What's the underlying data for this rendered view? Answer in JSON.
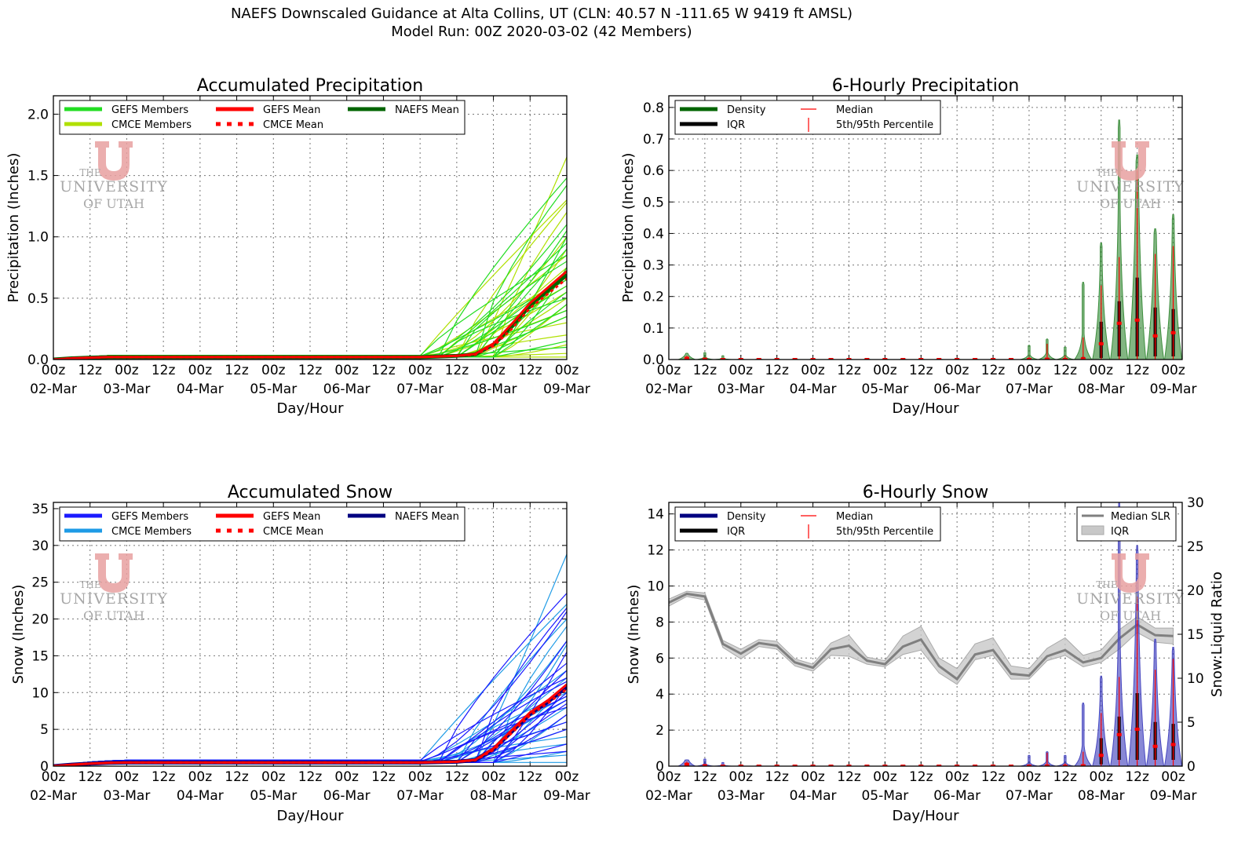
{
  "suptitle": {
    "line1": "NAEFS Downscaled Guidance at Alta Collins, UT (CLN: 40.57 N -111.65 W 9419 ft AMSL)",
    "line2": "Model Run: 00Z 2020-03-02 (42 Members)"
  },
  "watermark": {
    "line1": "THE",
    "line2": "UNIVERSITY",
    "line3": "OF UTAH",
    "logo_color": "#e8a0a0"
  },
  "x_axis": {
    "label": "Day/Hour",
    "hour_labels": [
      "00z",
      "12z",
      "00z",
      "12z",
      "00z",
      "12z",
      "00z",
      "12z",
      "00z",
      "12z",
      "00z",
      "12z",
      "00z",
      "12z",
      "00z"
    ],
    "date_labels": [
      "02-Mar",
      "03-Mar",
      "04-Mar",
      "05-Mar",
      "06-Mar",
      "07-Mar",
      "08-Mar",
      "09-Mar"
    ]
  },
  "chart_data": [
    {
      "id": "acc_precip",
      "type": "line",
      "title": "Accumulated Precipitation",
      "ylabel": "Precipitation (Inches)",
      "xlim_hours": [
        0,
        168
      ],
      "ylim": [
        0,
        2.15
      ],
      "yticks": [
        "0.0",
        "0.5",
        "1.0",
        "1.5",
        "2.0"
      ],
      "ytick_values": [
        0,
        0.5,
        1.0,
        1.5,
        2.0
      ],
      "grid": true,
      "legend": {
        "placement": "top-left",
        "items": [
          {
            "label": "GEFS Members",
            "color": "#22dd22",
            "style": "solid"
          },
          {
            "label": "CMCE Members",
            "color": "#b0e000",
            "style": "solid"
          },
          {
            "label": "GEFS Mean",
            "color": "#ff0000",
            "style": "solid"
          },
          {
            "label": "CMCE Mean",
            "color": "#ff0000",
            "style": "dotted"
          },
          {
            "label": "NAEFS Mean",
            "color": "#006400",
            "style": "solid"
          }
        ]
      },
      "x_hours": [
        0,
        6,
        12,
        18,
        24,
        30,
        36,
        42,
        48,
        54,
        60,
        66,
        72,
        78,
        84,
        90,
        96,
        102,
        108,
        114,
        120,
        126,
        132,
        138,
        144,
        150,
        156,
        162,
        168
      ],
      "plateau": 0.02,
      "gefs_mean": [
        0,
        0.01,
        0.015,
        0.02,
        0.02,
        0.02,
        0.02,
        0.02,
        0.02,
        0.02,
        0.02,
        0.02,
        0.02,
        0.02,
        0.02,
        0.02,
        0.02,
        0.02,
        0.02,
        0.02,
        0.02,
        0.025,
        0.03,
        0.045,
        0.13,
        0.29,
        0.46,
        0.59,
        0.72
      ],
      "cmce_mean": [
        0,
        0.01,
        0.015,
        0.02,
        0.02,
        0.02,
        0.02,
        0.02,
        0.02,
        0.02,
        0.02,
        0.02,
        0.02,
        0.02,
        0.02,
        0.02,
        0.02,
        0.02,
        0.02,
        0.02,
        0.02,
        0.025,
        0.03,
        0.04,
        0.11,
        0.25,
        0.42,
        0.54,
        0.66
      ],
      "naefs_mean": [
        0,
        0.01,
        0.015,
        0.02,
        0.02,
        0.02,
        0.02,
        0.02,
        0.02,
        0.02,
        0.02,
        0.02,
        0.02,
        0.02,
        0.02,
        0.02,
        0.02,
        0.02,
        0.02,
        0.02,
        0.02,
        0.025,
        0.03,
        0.042,
        0.12,
        0.27,
        0.44,
        0.565,
        0.69
      ],
      "gefs_member_totals": [
        1.48,
        1.42,
        1.1,
        1.05,
        1.0,
        0.95,
        0.9,
        0.85,
        0.8,
        0.75,
        0.72,
        0.7,
        0.65,
        0.6,
        0.55,
        0.5,
        0.45,
        0.4,
        0.35,
        0.15,
        0.1
      ],
      "cmce_member_totals": [
        1.65,
        1.3,
        1.28,
        1.2,
        1.0,
        0.9,
        0.85,
        0.75,
        0.7,
        0.65,
        0.6,
        0.55,
        0.5,
        0.45,
        0.4,
        0.35,
        0.3,
        0.2,
        0.12,
        0.05,
        0.02
      ]
    },
    {
      "id": "precip_6h",
      "type": "violin",
      "title": "6-Hourly Precipitation",
      "ylabel": "Precipitation (Inches)",
      "xlim_hours": [
        0,
        171
      ],
      "ylim": [
        0,
        0.837
      ],
      "yticks": [
        "0.0",
        "0.1",
        "0.2",
        "0.3",
        "0.4",
        "0.5",
        "0.6",
        "0.7",
        "0.8"
      ],
      "ytick_values": [
        0,
        0.1,
        0.2,
        0.3,
        0.4,
        0.5,
        0.6,
        0.7,
        0.8
      ],
      "grid": true,
      "fill": "#3f8f3f",
      "legend": {
        "placement": "top-left",
        "items": [
          {
            "label": "Density",
            "color": "#006400"
          },
          {
            "label": "IQR",
            "color": "#000000"
          },
          {
            "label": "Median",
            "color": "#ff0000"
          },
          {
            "label": "5th/95th Percentile",
            "color": "#ff0000"
          }
        ]
      },
      "x_hours": [
        6,
        12,
        18,
        24,
        30,
        36,
        42,
        48,
        54,
        60,
        66,
        72,
        78,
        84,
        90,
        96,
        102,
        108,
        114,
        120,
        126,
        132,
        138,
        144,
        150,
        156,
        162,
        168
      ],
      "max": [
        0.02,
        0.022,
        0.012,
        0.003,
        0.003,
        0.002,
        0.002,
        0.002,
        0.002,
        0.002,
        0.002,
        0.002,
        0.002,
        0.002,
        0.002,
        0.002,
        0.002,
        0.002,
        0.002,
        0.045,
        0.065,
        0.04,
        0.245,
        0.37,
        0.76,
        0.65,
        0.415,
        0.46
      ],
      "p95": [
        0.012,
        0.006,
        0.004,
        0.001,
        0.001,
        0.001,
        0.001,
        0.001,
        0.001,
        0.001,
        0.001,
        0.001,
        0.001,
        0.001,
        0.001,
        0.001,
        0.001,
        0.001,
        0.001,
        0.008,
        0.05,
        0.012,
        0.07,
        0.235,
        0.325,
        0.6,
        0.335,
        0.36
      ],
      "p75": [
        0.008,
        0.002,
        0.001,
        0,
        0,
        0,
        0,
        0,
        0,
        0,
        0,
        0,
        0,
        0,
        0,
        0,
        0,
        0,
        0,
        0.002,
        0.005,
        0.003,
        0.008,
        0.12,
        0.185,
        0.26,
        0.165,
        0.16
      ],
      "median": [
        0.004,
        0.001,
        0,
        0,
        0,
        0,
        0,
        0,
        0,
        0,
        0,
        0,
        0,
        0,
        0,
        0,
        0,
        0,
        0,
        0,
        0.001,
        0,
        0.002,
        0.05,
        0.115,
        0.125,
        0.075,
        0.085
      ],
      "p25": [
        0,
        0,
        0,
        0,
        0,
        0,
        0,
        0,
        0,
        0,
        0,
        0,
        0,
        0,
        0,
        0,
        0,
        0,
        0,
        0,
        0,
        0,
        0,
        0.005,
        0.01,
        0.01,
        0.01,
        0.01
      ]
    },
    {
      "id": "acc_snow",
      "type": "line",
      "title": "Accumulated Snow",
      "ylabel": "Snow (Inches)",
      "xlim_hours": [
        0,
        168
      ],
      "ylim": [
        0,
        35.85
      ],
      "yticks": [
        "0",
        "5",
        "10",
        "15",
        "20",
        "25",
        "30",
        "35"
      ],
      "ytick_values": [
        0,
        5,
        10,
        15,
        20,
        25,
        30,
        35
      ],
      "grid": true,
      "legend": {
        "placement": "top-left",
        "items": [
          {
            "label": "GEFS Members",
            "color": "#1a1aff",
            "style": "solid"
          },
          {
            "label": "CMCE Members",
            "color": "#1e9be6",
            "style": "solid"
          },
          {
            "label": "GEFS Mean",
            "color": "#ff0000",
            "style": "solid"
          },
          {
            "label": "CMCE Mean",
            "color": "#ff0000",
            "style": "dotted"
          },
          {
            "label": "NAEFS Mean",
            "color": "#000080",
            "style": "solid"
          }
        ]
      },
      "x_hours": [
        0,
        6,
        12,
        18,
        24,
        30,
        36,
        42,
        48,
        54,
        60,
        66,
        72,
        78,
        84,
        90,
        96,
        102,
        108,
        114,
        120,
        126,
        132,
        138,
        144,
        150,
        156,
        162,
        168
      ],
      "plateau": 0.5,
      "gefs_mean": [
        0,
        0.2,
        0.35,
        0.45,
        0.5,
        0.5,
        0.5,
        0.5,
        0.5,
        0.5,
        0.5,
        0.5,
        0.5,
        0.5,
        0.5,
        0.5,
        0.5,
        0.5,
        0.5,
        0.5,
        0.5,
        0.55,
        0.6,
        0.85,
        2.4,
        4.9,
        7.3,
        9.0,
        11.1
      ],
      "cmce_mean": [
        0,
        0.2,
        0.35,
        0.45,
        0.5,
        0.5,
        0.5,
        0.5,
        0.5,
        0.5,
        0.5,
        0.5,
        0.5,
        0.5,
        0.5,
        0.5,
        0.5,
        0.5,
        0.5,
        0.5,
        0.5,
        0.55,
        0.6,
        0.8,
        2.2,
        4.5,
        6.9,
        8.6,
        10.5
      ],
      "naefs_mean": [
        0,
        0.2,
        0.35,
        0.45,
        0.5,
        0.5,
        0.5,
        0.5,
        0.5,
        0.5,
        0.5,
        0.5,
        0.5,
        0.5,
        0.5,
        0.5,
        0.5,
        0.5,
        0.5,
        0.5,
        0.5,
        0.55,
        0.6,
        0.82,
        2.3,
        4.7,
        7.1,
        8.8,
        10.8
      ],
      "gefs_member_totals": [
        23.5,
        21.5,
        21,
        17,
        15.5,
        14,
        13,
        12,
        11.5,
        11,
        10.5,
        10,
        9.5,
        9,
        8.5,
        8,
        7,
        6,
        5,
        3,
        2
      ],
      "cmce_member_totals": [
        28.8,
        22,
        20,
        19,
        17,
        16.5,
        13,
        12,
        11,
        10,
        9.5,
        9,
        8,
        7,
        6,
        5,
        4,
        3,
        2,
        1.5,
        0.5
      ]
    },
    {
      "id": "snow_6h",
      "type": "violin",
      "title": "6-Hourly Snow",
      "ylabel": "Snow (Inches)",
      "y2label": "Snow:Liquid Ratio",
      "xlim_hours": [
        0,
        171
      ],
      "ylim": [
        0,
        14.64
      ],
      "y2lim": [
        0,
        30
      ],
      "yticks": [
        "0",
        "2",
        "4",
        "6",
        "8",
        "10",
        "12",
        "14"
      ],
      "ytick_values": [
        0,
        2,
        4,
        6,
        8,
        10,
        12,
        14
      ],
      "y2ticks": [
        "0",
        "5",
        "10",
        "15",
        "20",
        "25",
        "30"
      ],
      "y2tick_values": [
        0,
        5,
        10,
        15,
        20,
        25,
        30
      ],
      "grid": true,
      "fill": "#4848c0",
      "legend": {
        "placement": "top-left",
        "items": [
          {
            "label": "Density",
            "color": "#000080"
          },
          {
            "label": "IQR",
            "color": "#000000"
          },
          {
            "label": "Median",
            "color": "#ff0000"
          },
          {
            "label": "5th/95th Percentile",
            "color": "#ff0000"
          }
        ]
      },
      "legend2": {
        "placement": "top-right",
        "items": [
          {
            "label": "Median SLR",
            "color": "#808080"
          },
          {
            "label": "IQR",
            "color": "#c8c8c8"
          }
        ]
      },
      "x_hours": [
        6,
        12,
        18,
        24,
        30,
        36,
        42,
        48,
        54,
        60,
        66,
        72,
        78,
        84,
        90,
        96,
        102,
        108,
        114,
        120,
        126,
        132,
        138,
        144,
        150,
        156,
        162,
        168
      ],
      "max": [
        0.35,
        0.4,
        0.2,
        0.05,
        0.05,
        0.03,
        0.03,
        0.03,
        0.03,
        0.03,
        0.03,
        0.03,
        0.03,
        0.03,
        0.03,
        0.03,
        0.03,
        0.03,
        0.03,
        0.6,
        0.8,
        0.6,
        3.5,
        5.0,
        14.6,
        12.25,
        7.05,
        6.6
      ],
      "p95": [
        0.25,
        0.12,
        0.08,
        0.02,
        0.02,
        0.02,
        0.02,
        0.02,
        0.02,
        0.02,
        0.02,
        0.02,
        0.02,
        0.02,
        0.02,
        0.02,
        0.02,
        0.02,
        0.02,
        0.1,
        0.75,
        0.15,
        0.8,
        2.95,
        4.95,
        9.4,
        5.35,
        5.95
      ],
      "p75": [
        0.18,
        0.05,
        0.02,
        0,
        0,
        0,
        0,
        0,
        0,
        0,
        0,
        0,
        0,
        0,
        0,
        0,
        0,
        0,
        0,
        0.03,
        0.08,
        0.04,
        0.1,
        1.55,
        2.75,
        4.05,
        2.45,
        2.35
      ],
      "median": [
        0.1,
        0.02,
        0,
        0,
        0,
        0,
        0,
        0,
        0,
        0,
        0,
        0,
        0,
        0,
        0,
        0,
        0,
        0,
        0,
        0,
        0.01,
        0,
        0.02,
        0.6,
        1.75,
        2.05,
        1.1,
        1.2
      ],
      "p25": [
        0,
        0,
        0,
        0,
        0,
        0,
        0,
        0,
        0,
        0,
        0,
        0,
        0,
        0,
        0,
        0,
        0,
        0,
        0,
        0,
        0,
        0,
        0,
        0.1,
        0.35,
        0.35,
        0.35,
        0.35
      ],
      "slr_hours": [
        0,
        6,
        12,
        18,
        24,
        30,
        36,
        42,
        48,
        54,
        60,
        66,
        72,
        78,
        84,
        90,
        96,
        102,
        108,
        114,
        120,
        126,
        132,
        138,
        144,
        150,
        156,
        162,
        168
      ],
      "slr_median": [
        18.6,
        19.6,
        19.3,
        13.9,
        12.8,
        14.0,
        13.7,
        11.8,
        11.2,
        13.3,
        13.7,
        12.0,
        11.6,
        13.6,
        14.4,
        11.4,
        9.9,
        12.7,
        13.2,
        10.5,
        10.3,
        12.5,
        13.2,
        11.8,
        12.3,
        14.5,
        16.1,
        14.9,
        14.8
      ],
      "slr_p25": [
        18.2,
        19.3,
        18.9,
        13.5,
        12.2,
        13.6,
        13.3,
        11.4,
        10.8,
        12.6,
        12.5,
        11.6,
        11.3,
        12.7,
        13.2,
        10.6,
        9.3,
        12.1,
        12.6,
        9.9,
        9.9,
        12.0,
        12.6,
        11.3,
        11.8,
        13.3,
        15.2,
        14.1,
        13.9
      ],
      "slr_p75": [
        19.0,
        19.9,
        19.7,
        14.3,
        13.3,
        14.4,
        14.2,
        12.2,
        11.6,
        14.0,
        14.9,
        12.4,
        12.0,
        14.8,
        15.9,
        12.3,
        11.1,
        13.9,
        14.6,
        11.4,
        11.1,
        13.4,
        14.6,
        12.6,
        13.2,
        15.5,
        17.0,
        15.7,
        15.7
      ]
    }
  ]
}
